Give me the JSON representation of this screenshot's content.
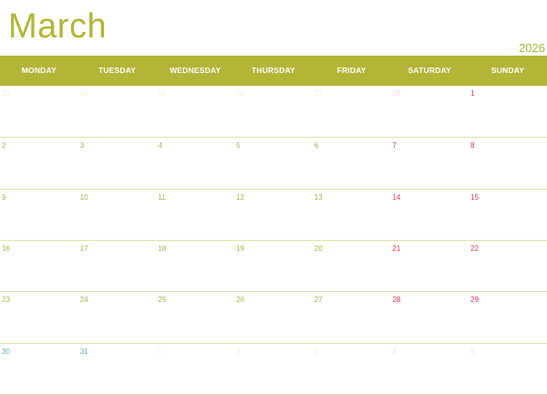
{
  "calendar": {
    "month": "March",
    "year": "2026",
    "day_names": [
      "MONDAY",
      "TUESDAY",
      "WEDNESDAY",
      "THURSDAY",
      "FRIDAY",
      "SATURDAY",
      "SUNDAY"
    ],
    "weeks": [
      [
        {
          "d": "23",
          "out": true
        },
        {
          "d": "24",
          "out": true
        },
        {
          "d": "25",
          "out": true
        },
        {
          "d": "26",
          "out": true
        },
        {
          "d": "27",
          "out": true
        },
        {
          "d": "28",
          "out": true
        },
        {
          "d": "1",
          "out": false
        }
      ],
      [
        {
          "d": "2",
          "out": false
        },
        {
          "d": "3",
          "out": false
        },
        {
          "d": "4",
          "out": false
        },
        {
          "d": "5",
          "out": false
        },
        {
          "d": "6",
          "out": false
        },
        {
          "d": "7",
          "out": false
        },
        {
          "d": "8",
          "out": false
        }
      ],
      [
        {
          "d": "9",
          "out": false
        },
        {
          "d": "10",
          "out": false
        },
        {
          "d": "11",
          "out": false
        },
        {
          "d": "12",
          "out": false
        },
        {
          "d": "13",
          "out": false
        },
        {
          "d": "14",
          "out": false
        },
        {
          "d": "15",
          "out": false
        }
      ],
      [
        {
          "d": "16",
          "out": false
        },
        {
          "d": "17",
          "out": false
        },
        {
          "d": "18",
          "out": false
        },
        {
          "d": "19",
          "out": false
        },
        {
          "d": "20",
          "out": false
        },
        {
          "d": "21",
          "out": false
        },
        {
          "d": "22",
          "out": false
        }
      ],
      [
        {
          "d": "23",
          "out": false
        },
        {
          "d": "24",
          "out": false
        },
        {
          "d": "25",
          "out": false
        },
        {
          "d": "26",
          "out": false
        },
        {
          "d": "27",
          "out": false
        },
        {
          "d": "28",
          "out": false
        },
        {
          "d": "29",
          "out": false
        }
      ],
      [
        {
          "d": "30",
          "out": false
        },
        {
          "d": "31",
          "out": false
        },
        {
          "d": "1",
          "out": true
        },
        {
          "d": "2",
          "out": true
        },
        {
          "d": "3",
          "out": true
        },
        {
          "d": "4",
          "out": true
        },
        {
          "d": "5",
          "out": true
        }
      ]
    ]
  },
  "colors": {
    "accent": "#b2b536",
    "weekend": "#d6394d",
    "last_week": "#6aa5b4"
  }
}
